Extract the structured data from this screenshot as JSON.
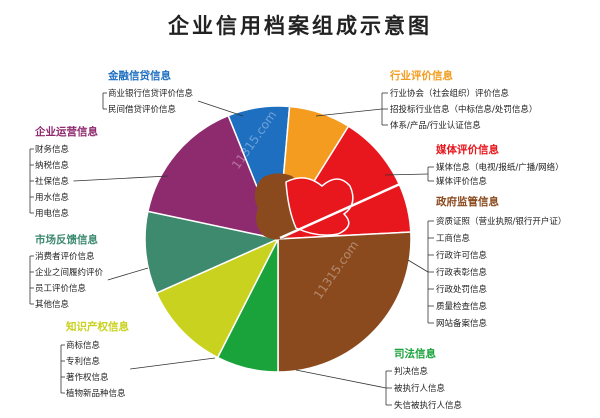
{
  "title": "企业信用档案组成示意图",
  "watermark": "11315.com",
  "categories": [
    {
      "key": "finance",
      "title": "金融信贷信息",
      "color": "#1f6fc0",
      "items": [
        "商业银行信贷评价信息",
        "民间借贷评价信息"
      ]
    },
    {
      "key": "industry",
      "title": "行业评价信息",
      "color": "#f39c1f",
      "items": [
        "行业协会（社会组织）评价信息",
        "招投标行业信息（中标信息/处罚信息）",
        "体系/产品/行业认证信息"
      ]
    },
    {
      "key": "media",
      "title": "媒体评价信息",
      "color": "#e8161d",
      "items": [
        "媒体信息（电视/报纸/广播/网络）",
        "媒体评价信息"
      ]
    },
    {
      "key": "gov",
      "title": "政府监管信息",
      "color": "#8b4a1e",
      "items": [
        "资质证照（营业执照/银行开户证）",
        "工商信息",
        "行政许可信息",
        "行政表彰信息",
        "行政处罚信息",
        "质量检查信息",
        "网站备案信息"
      ]
    },
    {
      "key": "judicial",
      "title": "司法信息",
      "color": "#1aa33b",
      "items": [
        "判决信息",
        "被执行人信息",
        "失信被执行人信息"
      ]
    },
    {
      "key": "ip",
      "title": "知识产权信息",
      "color": "#c9d21e",
      "items": [
        "商标信息",
        "专利信息",
        "著作权信息",
        "植物新品种信息"
      ]
    },
    {
      "key": "market",
      "title": "市场反馈信息",
      "color": "#3d8a6f",
      "items": [
        "消费者评价信息",
        "企业之间履约评价",
        "员工评价信息",
        "其他信息"
      ]
    },
    {
      "key": "operation",
      "title": "企业运营信息",
      "color": "#8e2a6e",
      "items": [
        "财务信息",
        "纳税信息",
        "社保信息",
        "用水信息",
        "用电信息"
      ]
    }
  ]
}
